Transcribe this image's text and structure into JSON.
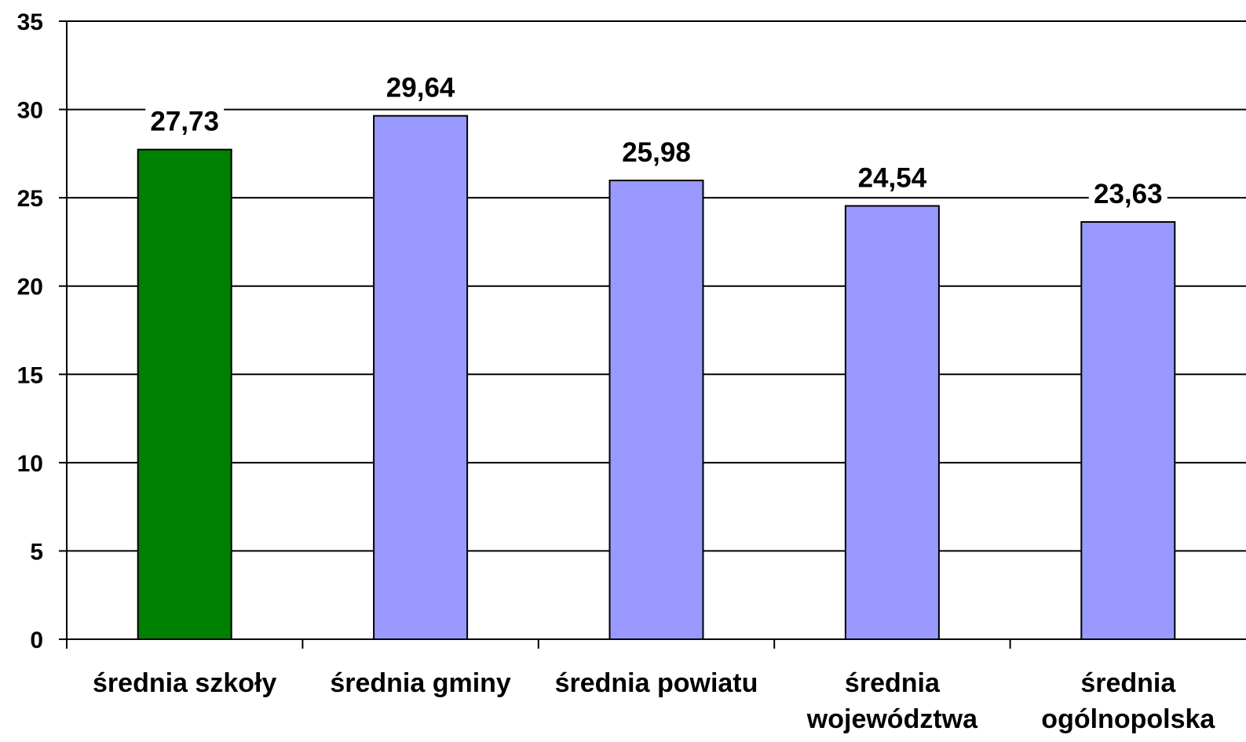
{
  "chart_data": {
    "type": "bar",
    "title": "",
    "xlabel": "",
    "ylabel": "",
    "categories": [
      "średnia szkoły",
      "średnia gminy",
      "średnia powiatu",
      "średnia województwa",
      "średnia ogólnopolska"
    ],
    "category_lines": [
      [
        "średnia szkoły"
      ],
      [
        "średnia gminy"
      ],
      [
        "średnia powiatu"
      ],
      [
        "średnia",
        "województwa"
      ],
      [
        "średnia",
        "ogólnopolska"
      ]
    ],
    "values": [
      27.73,
      29.64,
      25.98,
      24.54,
      23.63
    ],
    "value_labels": [
      "27,73",
      "29,64",
      "25,98",
      "24,54",
      "23,63"
    ],
    "bar_colors": [
      "#008000",
      "#9999ff",
      "#9999ff",
      "#9999ff",
      "#9999ff"
    ],
    "ylim": [
      0,
      35
    ],
    "yticks": [
      0,
      5,
      10,
      15,
      20,
      25,
      30,
      35
    ],
    "ytick_labels": [
      "0",
      "5",
      "10",
      "15",
      "20",
      "25",
      "30",
      "35"
    ],
    "grid": true,
    "legend": "none"
  }
}
